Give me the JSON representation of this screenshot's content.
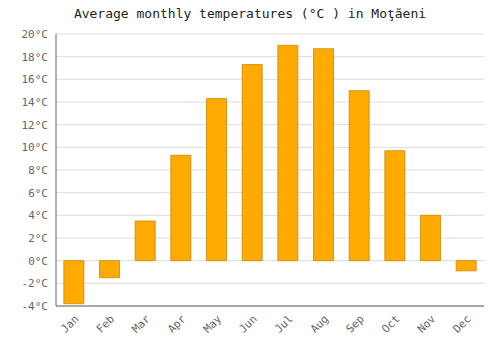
{
  "chart_data": {
    "type": "bar",
    "title": "Average monthly temperatures (°C ) in Moţăeni",
    "categories": [
      "Jan",
      "Feb",
      "Mar",
      "Apr",
      "May",
      "Jun",
      "Jul",
      "Aug",
      "Sep",
      "Oct",
      "Nov",
      "Dec"
    ],
    "values": [
      -3.8,
      -1.5,
      3.5,
      9.3,
      14.3,
      17.3,
      19.0,
      18.7,
      15.0,
      9.7,
      4.0,
      -0.9
    ],
    "color": "#FFAA00",
    "ylim": [
      -4,
      20
    ],
    "yticks": [
      {
        "value": -4,
        "label": "-4°C"
      },
      {
        "value": -2,
        "label": "-2°C"
      },
      {
        "value": 0,
        "label": "0°C"
      },
      {
        "value": 2,
        "label": "2°C"
      },
      {
        "value": 4,
        "label": "4°C"
      },
      {
        "value": 6,
        "label": "6°C"
      },
      {
        "value": 8,
        "label": "8°C"
      },
      {
        "value": 10,
        "label": "10°C"
      },
      {
        "value": 12,
        "label": "12°C"
      },
      {
        "value": 14,
        "label": "14°C"
      },
      {
        "value": 16,
        "label": "16°C"
      },
      {
        "value": 18,
        "label": "18°C"
      },
      {
        "value": 20,
        "label": "20°C"
      }
    ],
    "grid": true
  }
}
